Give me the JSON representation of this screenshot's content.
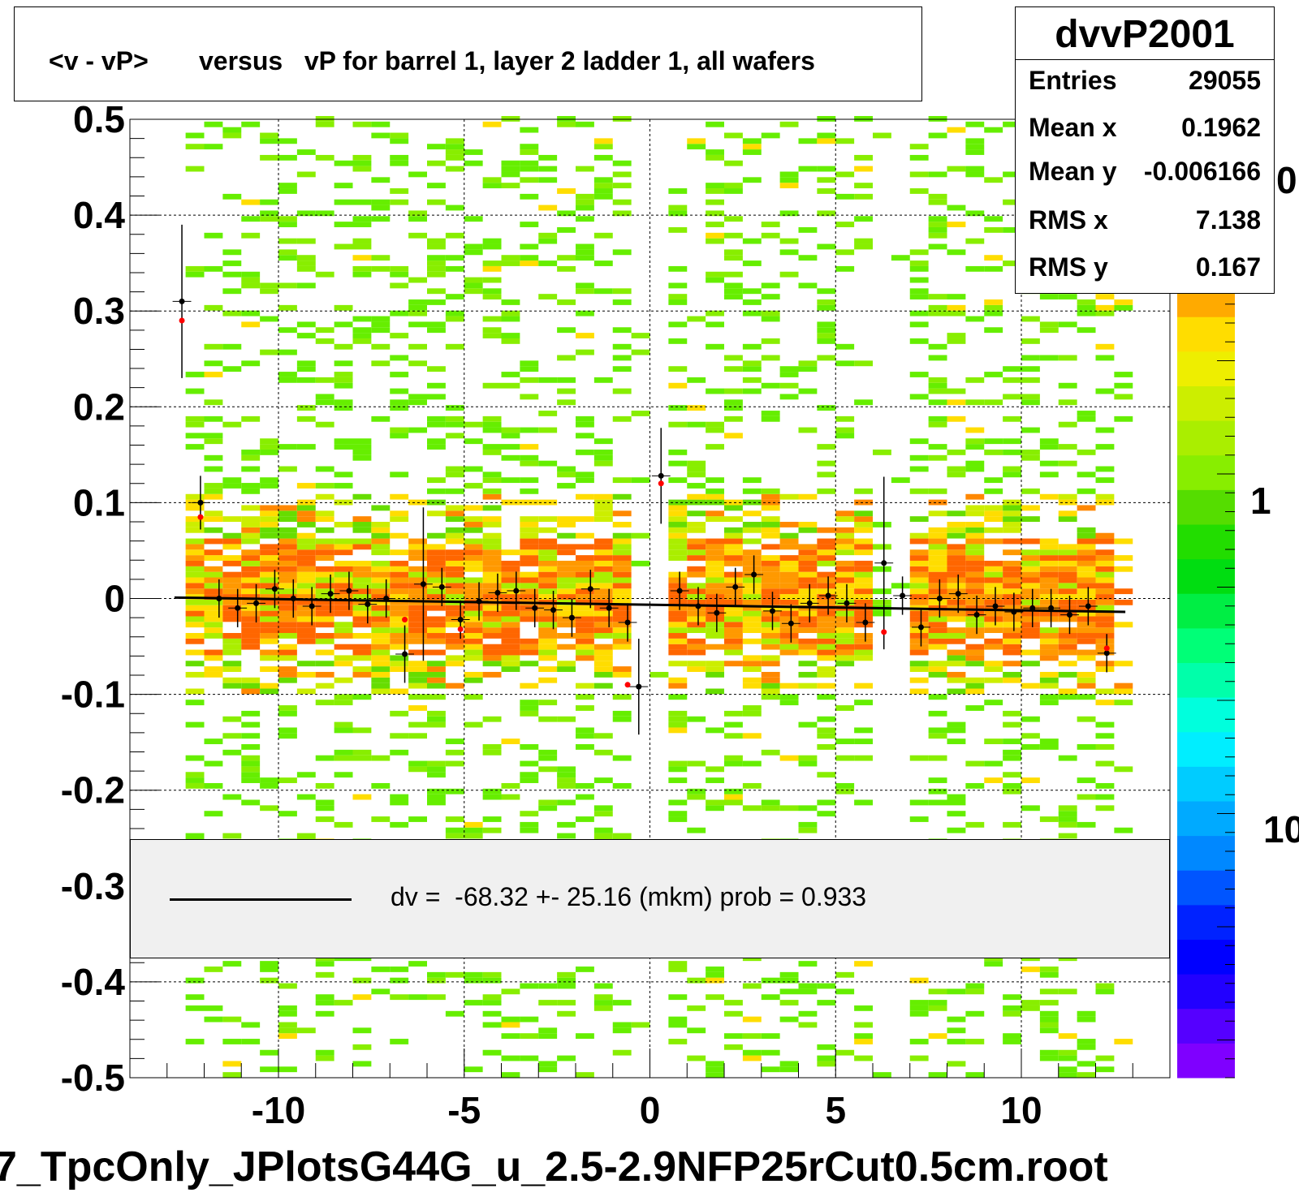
{
  "title": "<v - vP>       versus   vP for barrel 1, layer 2 ladder 1, all wafers",
  "footer": "7_TpcOnly_JPlotsG44G_u_2.5-2.9NFP25rCut0.5cm.root",
  "stats": {
    "name": "dvvP2001",
    "rows": [
      {
        "label": "Entries",
        "value": "29055"
      },
      {
        "label": "Mean x",
        "value": "0.1962"
      },
      {
        "label": "Mean y",
        "value": "-0.006166"
      },
      {
        "label": "RMS x",
        "value": "7.138"
      },
      {
        "label": "RMS y",
        "value": "0.167"
      }
    ]
  },
  "fit_legend": "dv =  -68.32 +- 25.16 (mkm) prob = 0.933",
  "colorbar": {
    "labels": [
      "0",
      "1",
      "10"
    ],
    "colors": [
      "#7f00ff",
      "#5500ff",
      "#2200ff",
      "#0000ff",
      "#0022ff",
      "#0055ff",
      "#0088ff",
      "#00aaff",
      "#00ccff",
      "#00eeff",
      "#00ffdd",
      "#00ffaa",
      "#00ff77",
      "#00ee44",
      "#00dd11",
      "#22dd00",
      "#55dd00",
      "#88ee00",
      "#aaee00",
      "#ccee00",
      "#eeee00",
      "#ffdd00",
      "#ffaa00",
      "#ff8800"
    ]
  },
  "chart_data": {
    "type": "heatmap",
    "xlim": [
      -14,
      14
    ],
    "ylim": [
      -0.5,
      0.5
    ],
    "x_ticks": [
      "-10",
      "-5",
      "0",
      "5",
      "10"
    ],
    "y_ticks": [
      "0.5",
      "0.4",
      "0.3",
      "0.2",
      "0.1",
      "0",
      "-0.1",
      "-0.2",
      "-0.3",
      "-0.4",
      "-0.5"
    ],
    "grid": true,
    "fit_line": {
      "x": [
        -12.8,
        12.8
      ],
      "y": [
        0.001,
        -0.014
      ]
    },
    "profile_black": {
      "x": [
        -12.6,
        -12.1,
        -11.6,
        -11.1,
        -10.6,
        -10.1,
        -9.6,
        -9.1,
        -8.6,
        -8.1,
        -7.6,
        -7.1,
        -6.6,
        -6.1,
        -5.6,
        -5.1,
        -4.6,
        -4.1,
        -3.6,
        -3.1,
        -2.6,
        -2.1,
        -1.6,
        -1.1,
        -0.6,
        -0.3,
        0.3,
        0.8,
        1.3,
        1.8,
        2.3,
        2.8,
        3.3,
        3.8,
        4.3,
        4.8,
        5.3,
        5.8,
        6.3,
        6.8,
        7.3,
        7.8,
        8.3,
        8.8,
        9.3,
        9.8,
        10.3,
        10.8,
        11.3,
        11.8,
        12.3
      ],
      "y": [
        0.31,
        0.1,
        0.0,
        -0.01,
        -0.005,
        0.01,
        0.0,
        -0.008,
        0.005,
        0.008,
        -0.006,
        0.0,
        -0.058,
        0.015,
        0.012,
        -0.022,
        -0.003,
        0.006,
        0.008,
        -0.01,
        -0.012,
        -0.02,
        0.01,
        -0.01,
        -0.025,
        -0.092,
        0.128,
        0.008,
        -0.008,
        -0.015,
        0.012,
        0.025,
        -0.013,
        -0.026,
        -0.005,
        0.003,
        -0.005,
        -0.025,
        0.037,
        0.003,
        -0.03,
        0.0,
        0.005,
        -0.017,
        -0.008,
        -0.014,
        -0.01,
        -0.01,
        -0.017,
        -0.008,
        -0.057
      ],
      "err": [
        0.08,
        0.028,
        0.02,
        0.02,
        0.02,
        0.02,
        0.02,
        0.02,
        0.02,
        0.02,
        0.02,
        0.02,
        0.03,
        0.08,
        0.02,
        0.02,
        0.02,
        0.02,
        0.02,
        0.02,
        0.02,
        0.02,
        0.02,
        0.02,
        0.02,
        0.05,
        0.05,
        0.02,
        0.02,
        0.02,
        0.02,
        0.02,
        0.02,
        0.02,
        0.02,
        0.02,
        0.02,
        0.02,
        0.09,
        0.02,
        0.02,
        0.02,
        0.02,
        0.02,
        0.02,
        0.02,
        0.02,
        0.02,
        0.02,
        0.02,
        0.02
      ]
    },
    "profile_red": {
      "x": [
        -12.6,
        -12.1,
        -6.6,
        -5.1,
        -0.6,
        0.3,
        6.3,
        12.3
      ],
      "y": [
        0.29,
        0.085,
        -0.022,
        -0.032,
        -0.09,
        0.12,
        -0.035,
        -0.052
      ]
    }
  }
}
